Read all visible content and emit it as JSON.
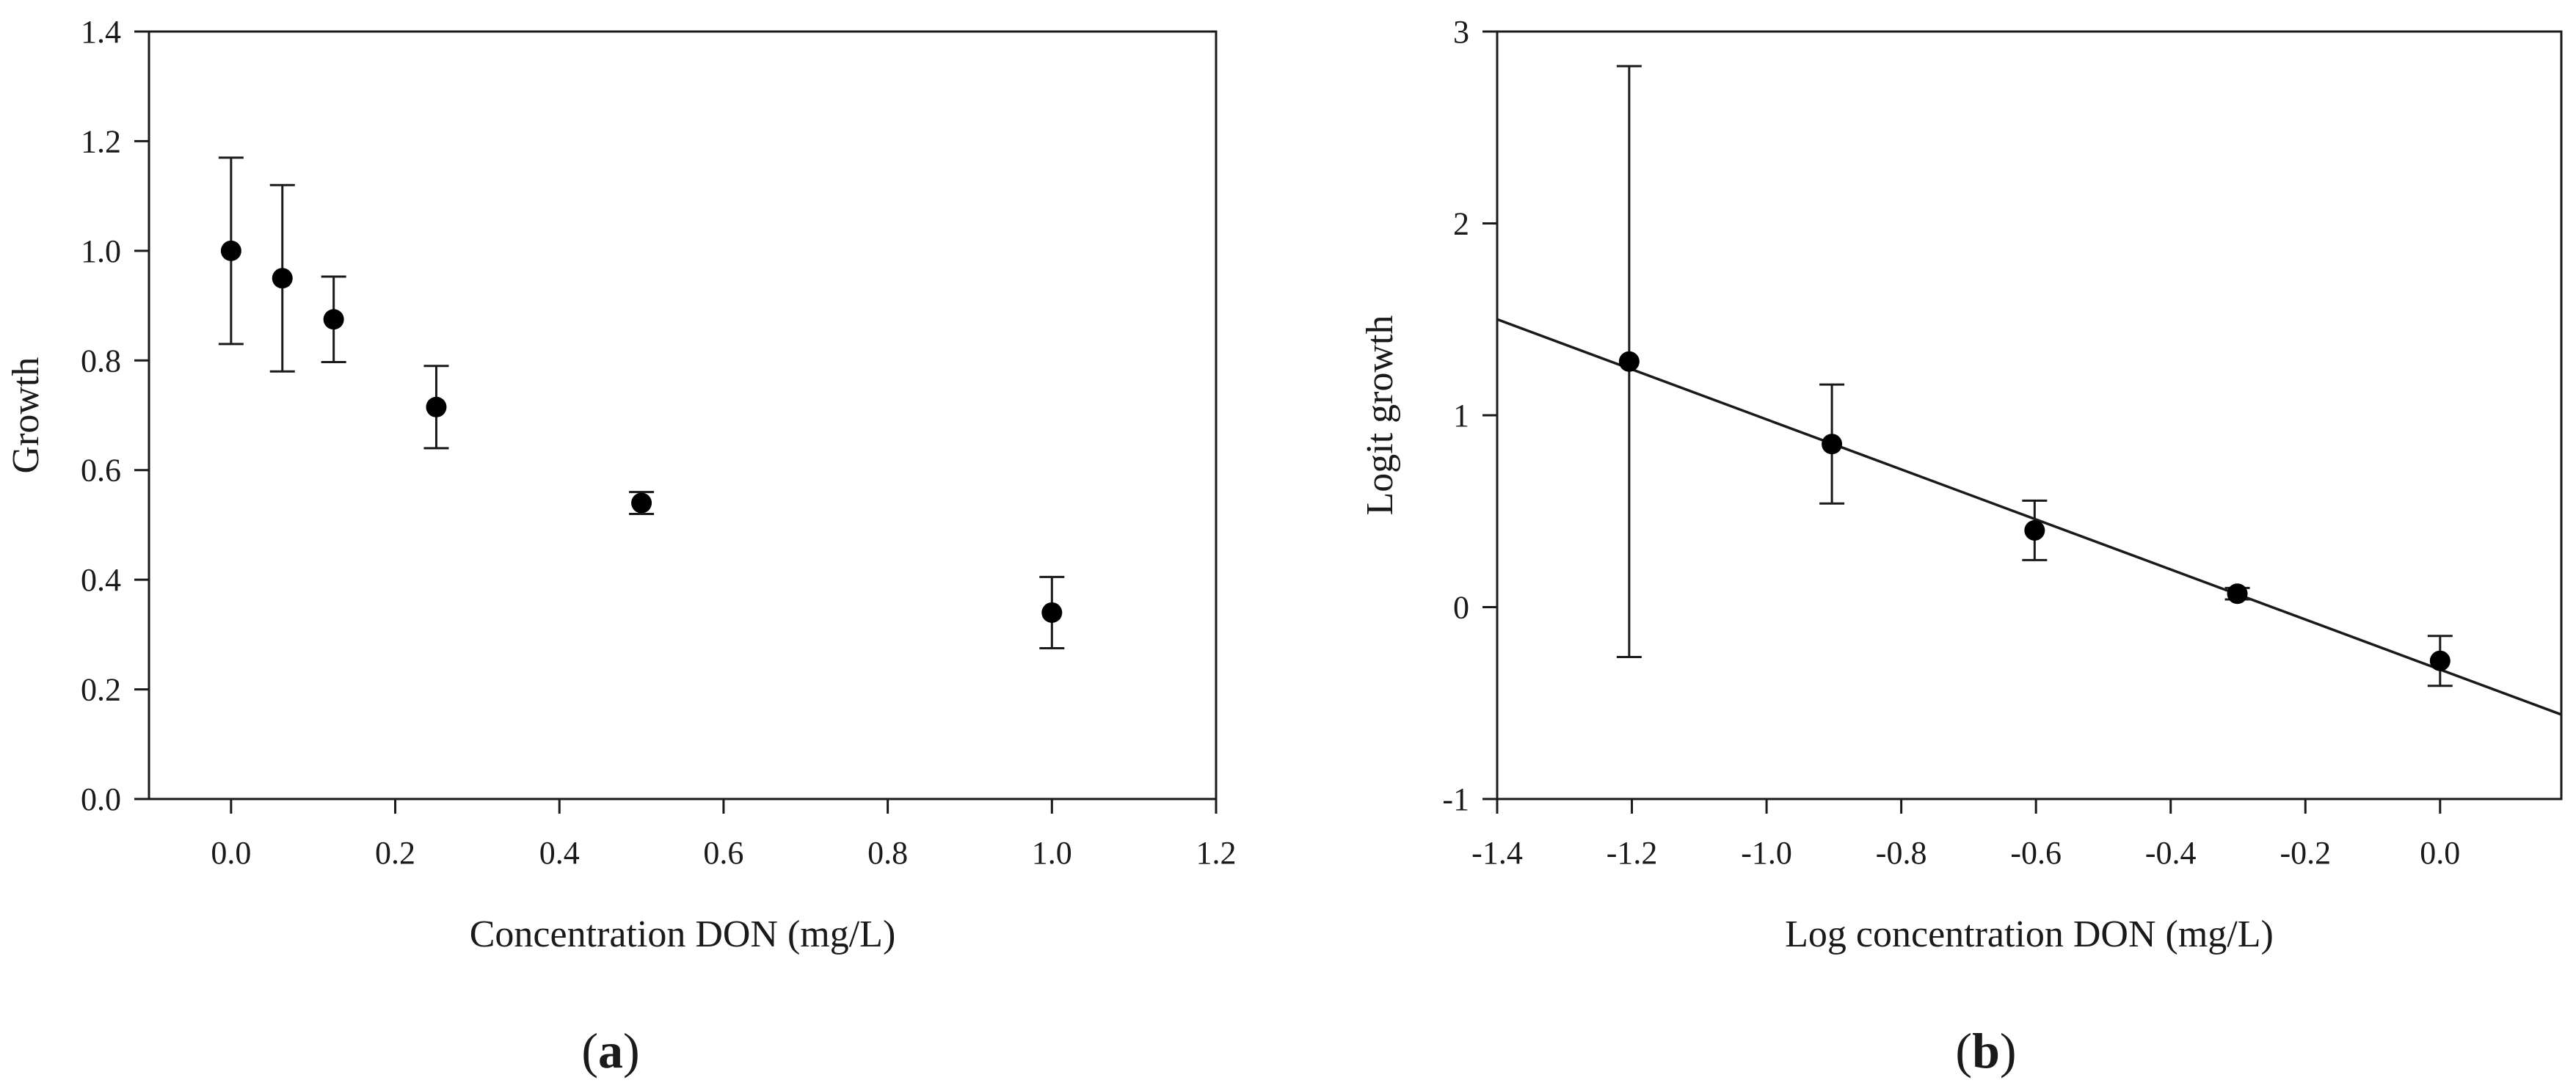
{
  "chart_data": [
    {
      "type": "scatter",
      "panel_label": "a",
      "xlabel": "Concentration DON (mg/L)",
      "ylabel": "Growth",
      "xlim": [
        -0.1,
        1.2
      ],
      "ylim": [
        0.0,
        1.4
      ],
      "xticks": [
        0.0,
        0.2,
        0.4,
        0.6,
        0.8,
        1.0,
        1.2
      ],
      "xtick_labels": [
        "0.0",
        "0.2",
        "0.4",
        "0.6",
        "0.8",
        "1.0",
        "1.2"
      ],
      "yticks": [
        0.0,
        0.2,
        0.4,
        0.6,
        0.8,
        1.0,
        1.2,
        1.4
      ],
      "ytick_labels": [
        "0.0",
        "0.2",
        "0.4",
        "0.6",
        "0.8",
        "1.0",
        "1.2",
        "1.4"
      ],
      "grid": false,
      "points": [
        {
          "x": 0.0,
          "y": 1.0,
          "err": 0.17
        },
        {
          "x": 0.0625,
          "y": 0.95,
          "err": 0.17
        },
        {
          "x": 0.125,
          "y": 0.875,
          "err": 0.078
        },
        {
          "x": 0.25,
          "y": 0.715,
          "err": 0.075
        },
        {
          "x": 0.5,
          "y": 0.54,
          "err": 0.02
        },
        {
          "x": 1.0,
          "y": 0.34,
          "err": 0.065
        }
      ]
    },
    {
      "type": "scatter",
      "panel_label": "b",
      "xlabel": "Log concentration DON (mg/L)",
      "ylabel": "Logit growth",
      "xlim": [
        -1.4,
        0.18
      ],
      "ylim": [
        -1,
        3
      ],
      "xticks": [
        -1.4,
        -1.2,
        -1.0,
        -0.8,
        -0.6,
        -0.4,
        -0.2,
        0.0
      ],
      "xtick_labels": [
        "-1.4",
        "-1.2",
        "-1.0",
        "-0.8",
        "-0.6",
        "-0.4",
        "-0.2",
        "0.0"
      ],
      "yticks": [
        -1,
        0,
        1,
        2,
        3
      ],
      "ytick_labels": [
        "-1",
        "0",
        "1",
        "2",
        "3"
      ],
      "grid": false,
      "points": [
        {
          "x": -1.204,
          "y": 1.28,
          "err_low": 1.54,
          "err_high": 1.54
        },
        {
          "x": -0.903,
          "y": 0.85,
          "err_low": 0.31,
          "err_high": 0.31
        },
        {
          "x": -0.602,
          "y": 0.4,
          "err_low": 0.155,
          "err_high": 0.155
        },
        {
          "x": -0.301,
          "y": 0.07,
          "err_low": 0.03,
          "err_high": 0.03
        },
        {
          "x": 0.0,
          "y": -0.28,
          "err_low": 0.13,
          "err_high": 0.13
        }
      ],
      "fit_line": {
        "x": [
          -1.4,
          0.18
        ],
        "y": [
          1.5,
          -0.56
        ]
      }
    }
  ]
}
